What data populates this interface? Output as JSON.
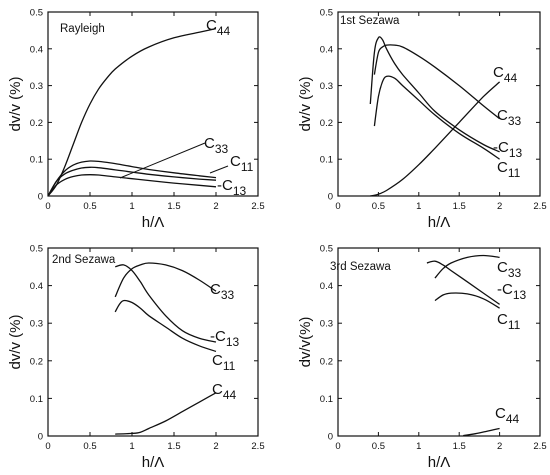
{
  "chart_data": [
    {
      "type": "line",
      "title": "Rayleigh",
      "xlabel": "h/Λ",
      "ylabel": "dv/v (%)",
      "xlim": [
        0,
        2.5
      ],
      "ylim": [
        0,
        0.5
      ],
      "xticks": [
        "0",
        "0.5",
        "1",
        "1.5",
        "2",
        "2.5"
      ],
      "yticks": [
        "0",
        "0.1",
        "0.2",
        "0.3",
        "0.4",
        "0.5"
      ],
      "series": [
        {
          "name": "C44",
          "x": [
            0,
            0.1,
            0.2,
            0.3,
            0.4,
            0.5,
            0.6,
            0.7,
            0.8,
            1.0,
            1.2,
            1.5,
            1.8,
            2.0
          ],
          "y": [
            0,
            0.03,
            0.08,
            0.14,
            0.2,
            0.25,
            0.29,
            0.32,
            0.345,
            0.38,
            0.405,
            0.43,
            0.445,
            0.455
          ]
        },
        {
          "name": "C33",
          "x": [
            0,
            0.1,
            0.2,
            0.3,
            0.4,
            0.5,
            0.6,
            0.8,
            1.0,
            1.2,
            1.5,
            1.8,
            2.0
          ],
          "y": [
            0,
            0.04,
            0.068,
            0.084,
            0.092,
            0.095,
            0.094,
            0.088,
            0.08,
            0.072,
            0.063,
            0.055,
            0.05
          ]
        },
        {
          "name": "C11",
          "x": [
            0,
            0.1,
            0.2,
            0.3,
            0.4,
            0.5,
            0.6,
            0.8,
            1.0,
            1.2,
            1.5,
            1.8,
            2.0
          ],
          "y": [
            0,
            0.04,
            0.06,
            0.07,
            0.076,
            0.078,
            0.077,
            0.071,
            0.065,
            0.059,
            0.052,
            0.046,
            0.043
          ]
        },
        {
          "name": "-C13",
          "x": [
            0,
            0.1,
            0.2,
            0.3,
            0.4,
            0.5,
            0.6,
            0.8,
            1.0,
            1.2,
            1.5,
            1.8,
            2.0
          ],
          "y": [
            0,
            0.03,
            0.045,
            0.053,
            0.057,
            0.058,
            0.057,
            0.052,
            0.047,
            0.042,
            0.035,
            0.029,
            0.025
          ]
        }
      ]
    },
    {
      "type": "line",
      "title": "1st Sezawa",
      "xlabel": "h/Λ",
      "ylabel": "dv/v (%)",
      "xlim": [
        0,
        2.5
      ],
      "ylim": [
        0,
        0.5
      ],
      "xticks": [
        "0",
        "0.5",
        "1",
        "1.5",
        "2",
        "2.5"
      ],
      "yticks": [
        "0",
        "0.1",
        "0.2",
        "0.3",
        "0.4",
        "0.5"
      ],
      "series": [
        {
          "name": "C44",
          "x": [
            0.4,
            0.5,
            0.6,
            0.8,
            1.0,
            1.2,
            1.5,
            1.8,
            2.0
          ],
          "y": [
            0,
            0.005,
            0.015,
            0.045,
            0.085,
            0.13,
            0.2,
            0.27,
            0.31
          ]
        },
        {
          "name": "C33",
          "x": [
            0.45,
            0.5,
            0.55,
            0.6,
            0.7,
            0.8,
            1.0,
            1.2,
            1.5,
            1.8,
            2.0
          ],
          "y": [
            0.33,
            0.39,
            0.405,
            0.41,
            0.41,
            0.405,
            0.38,
            0.35,
            0.3,
            0.245,
            0.21
          ]
        },
        {
          "name": "-C13",
          "x": [
            0.4,
            0.45,
            0.5,
            0.55,
            0.6,
            0.7,
            0.8,
            1.0,
            1.2,
            1.5,
            1.8,
            2.0
          ],
          "y": [
            0.25,
            0.39,
            0.43,
            0.425,
            0.4,
            0.36,
            0.33,
            0.28,
            0.23,
            0.18,
            0.14,
            0.12
          ]
        },
        {
          "name": "C11",
          "x": [
            0.45,
            0.5,
            0.55,
            0.6,
            0.7,
            0.8,
            1.0,
            1.2,
            1.5,
            1.8,
            2.0
          ],
          "y": [
            0.19,
            0.27,
            0.31,
            0.325,
            0.32,
            0.3,
            0.26,
            0.22,
            0.17,
            0.13,
            0.1
          ]
        }
      ]
    },
    {
      "type": "line",
      "title": "2nd Sezawa",
      "xlabel": "h/Λ",
      "ylabel": "dv/v (%)",
      "xlim": [
        0,
        2.5
      ],
      "ylim": [
        0,
        0.5
      ],
      "xticks": [
        "0",
        "0.5",
        "1",
        "1.5",
        "2",
        "2.5"
      ],
      "yticks": [
        "0",
        "0.1",
        "0.2",
        "0.3",
        "0.4",
        "0.5"
      ],
      "series": [
        {
          "name": "C33",
          "x": [
            0.8,
            0.9,
            1.0,
            1.1,
            1.2,
            1.4,
            1.6,
            1.8,
            2.0
          ],
          "y": [
            0.37,
            0.42,
            0.445,
            0.455,
            0.46,
            0.455,
            0.44,
            0.415,
            0.385
          ]
        },
        {
          "name": "-C13",
          "x": [
            0.8,
            0.9,
            1.0,
            1.1,
            1.2,
            1.4,
            1.6,
            1.8,
            2.0
          ],
          "y": [
            0.45,
            0.455,
            0.44,
            0.41,
            0.375,
            0.32,
            0.28,
            0.26,
            0.25
          ]
        },
        {
          "name": "C11",
          "x": [
            0.8,
            0.85,
            0.9,
            1.0,
            1.1,
            1.2,
            1.4,
            1.6,
            1.8,
            2.0
          ],
          "y": [
            0.33,
            0.35,
            0.36,
            0.355,
            0.34,
            0.32,
            0.29,
            0.26,
            0.24,
            0.225
          ]
        },
        {
          "name": "C44",
          "x": [
            0.8,
            1.0,
            1.1,
            1.2,
            1.4,
            1.6,
            1.8,
            2.0
          ],
          "y": [
            0.005,
            0.007,
            0.01,
            0.02,
            0.04,
            0.065,
            0.09,
            0.115
          ]
        }
      ]
    },
    {
      "type": "line",
      "title": "3rd Sezawa",
      "xlabel": "h/Λ",
      "ylabel": "dv/v(%)",
      "xlim": [
        0,
        2.5
      ],
      "ylim": [
        0,
        0.5
      ],
      "xticks": [
        "0",
        "0.5",
        "1",
        "1.5",
        "2",
        "2.5"
      ],
      "yticks": [
        "0",
        "0.1",
        "0.2",
        "0.3",
        "0.4",
        "0.5"
      ],
      "series": [
        {
          "name": "C33",
          "x": [
            1.2,
            1.3,
            1.4,
            1.6,
            1.8,
            2.0
          ],
          "y": [
            0.42,
            0.445,
            0.46,
            0.475,
            0.48,
            0.475
          ]
        },
        {
          "name": "-C13",
          "x": [
            1.1,
            1.2,
            1.3,
            1.4,
            1.6,
            1.8,
            2.0
          ],
          "y": [
            0.46,
            0.465,
            0.455,
            0.44,
            0.41,
            0.38,
            0.35
          ]
        },
        {
          "name": "C11",
          "x": [
            1.2,
            1.3,
            1.4,
            1.6,
            1.8,
            2.0
          ],
          "y": [
            0.36,
            0.375,
            0.38,
            0.378,
            0.365,
            0.34
          ]
        },
        {
          "name": "C44",
          "x": [
            1.55,
            1.7,
            1.85,
            2.0
          ],
          "y": [
            0.001,
            0.006,
            0.013,
            0.02
          ]
        }
      ]
    }
  ]
}
